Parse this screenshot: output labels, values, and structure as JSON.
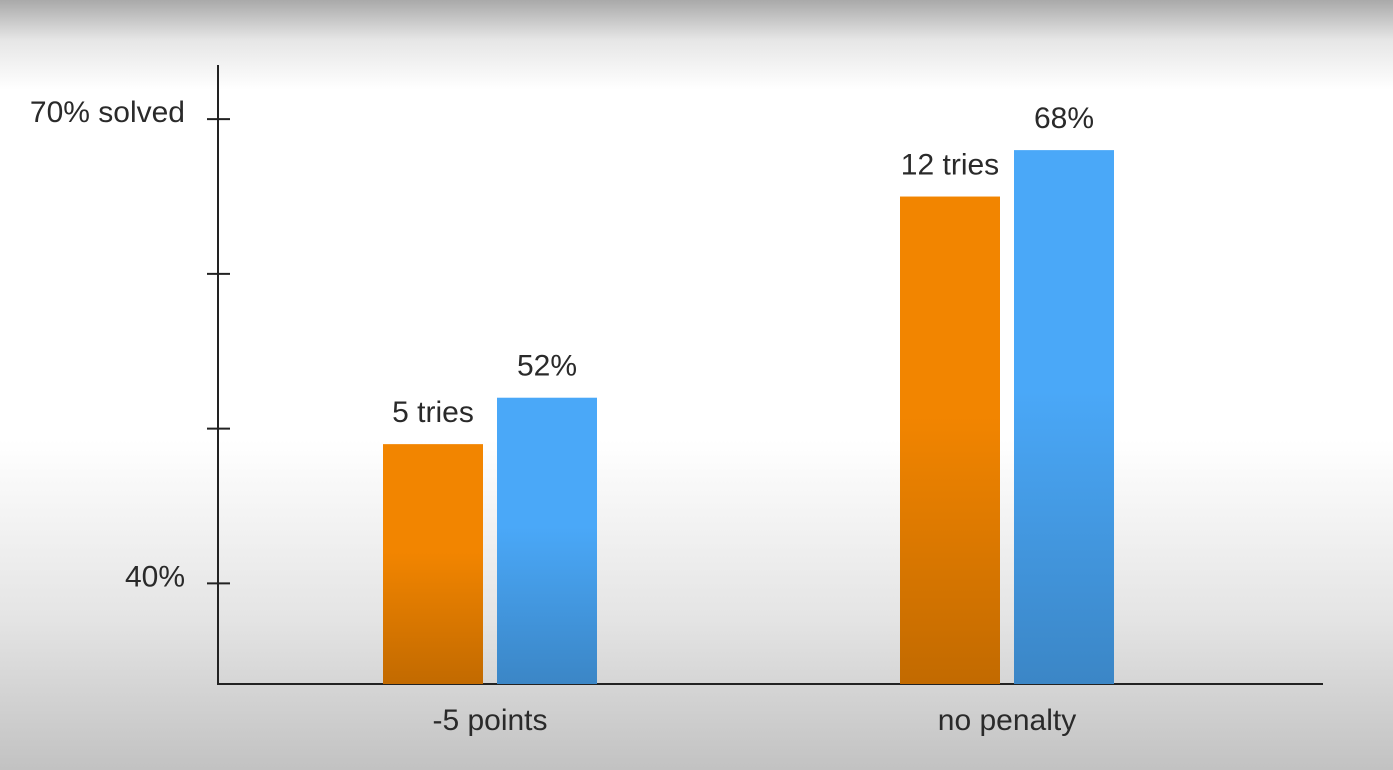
{
  "chart_data": {
    "type": "bar",
    "categories": [
      "-5 points",
      "no penalty"
    ],
    "series": [
      {
        "color": "#f28500",
        "values": [
          49,
          65
        ],
        "value_labels": [
          "5 tries",
          "12 tries"
        ]
      },
      {
        "color": "#4aa8f8",
        "values": [
          52,
          68
        ],
        "value_labels": [
          "52%",
          "68%"
        ]
      }
    ],
    "ylim": [
      33.5,
      73.5
    ],
    "yticks": [
      {
        "value": 70,
        "label": "70% solved"
      },
      {
        "value": 40,
        "label": "40%"
      }
    ],
    "minor_yticks": [
      60,
      50
    ],
    "grid": false
  }
}
